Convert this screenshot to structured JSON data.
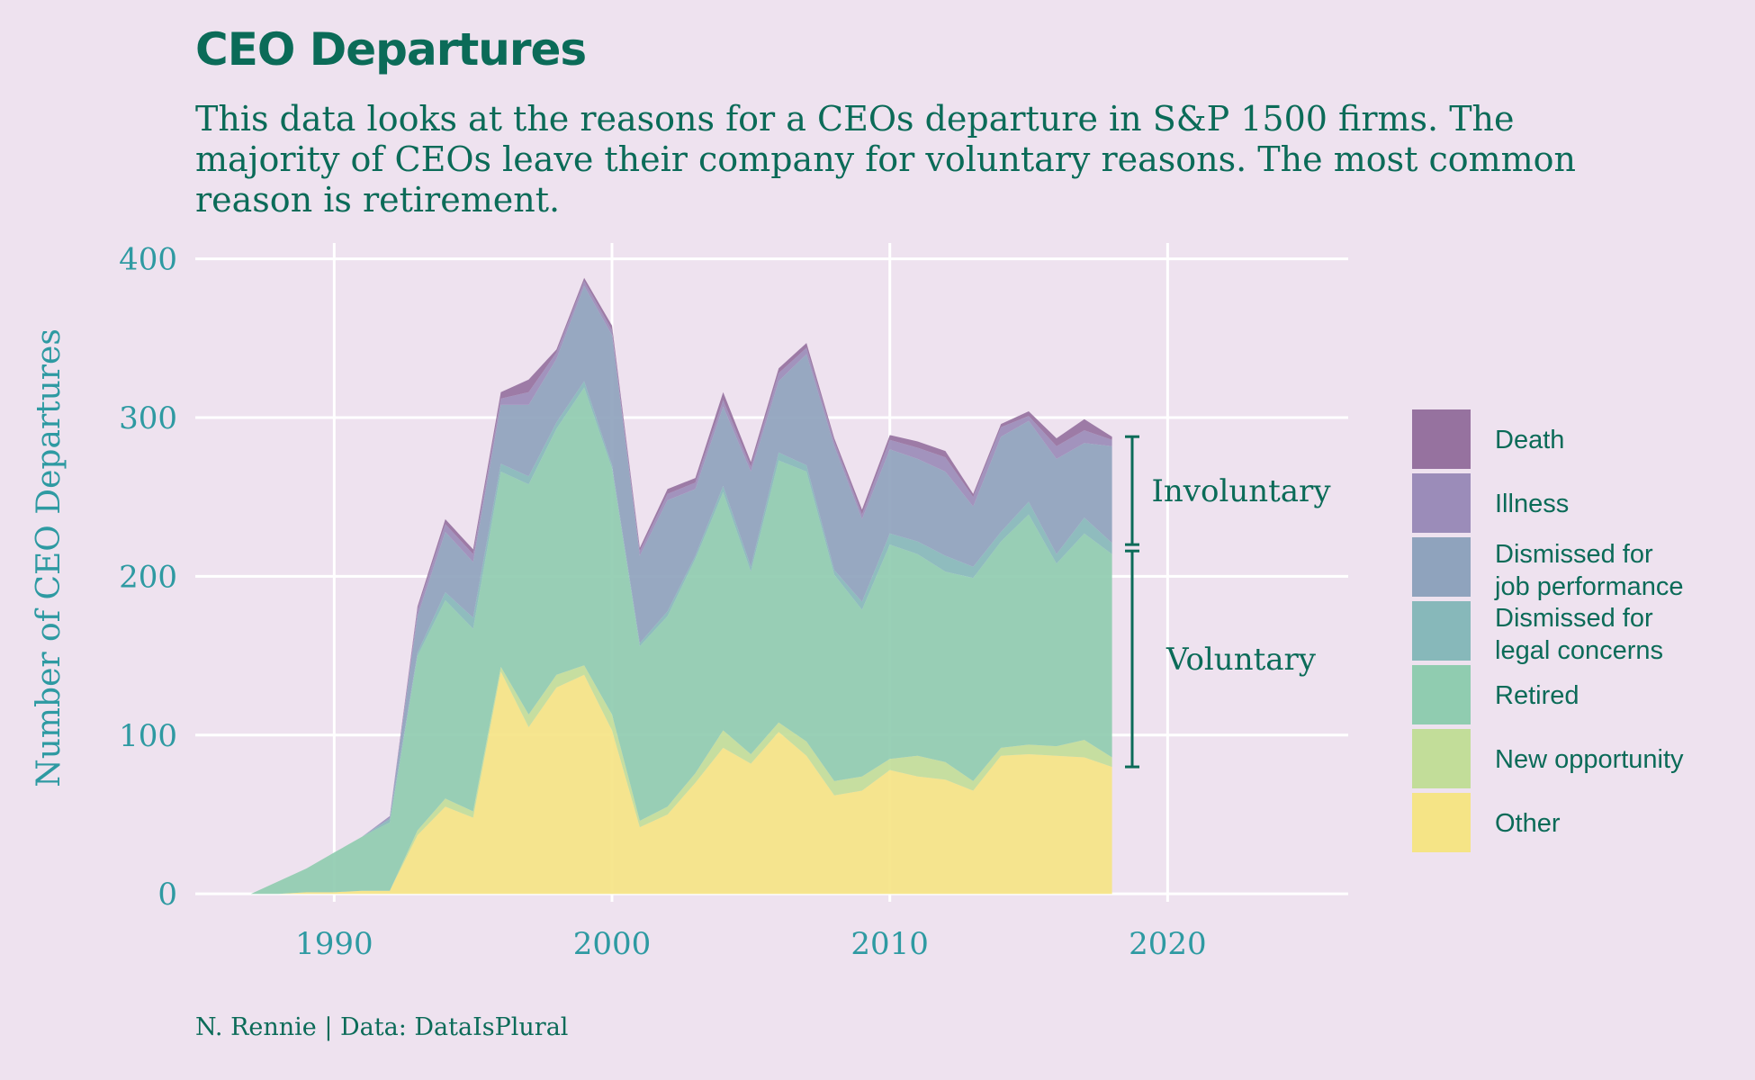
{
  "title": "CEO Departures",
  "subtitle": "This data looks at the reasons for a CEOs departure in S&P 1500 firms. The majority of CEOs leave their company for voluntary reasons. The most common reason is retirement.",
  "caption": "N. Rennie | Data: DataIsPlural",
  "colors": {
    "background": "#EEE2EF",
    "text": "#0B6B58",
    "axis_text": "#2E9AA2",
    "grid": "#FFFFFF",
    "bracket": "#0B6B58"
  },
  "chart_data": {
    "type": "area",
    "stacked": true,
    "ylabel": "Number of CEO Departures",
    "xlabel": "",
    "xlim": [
      1985,
      2026.5
    ],
    "ylim": [
      -5,
      410
    ],
    "x_ticks": [
      1990,
      2000,
      2010,
      2020
    ],
    "y_ticks": [
      0,
      100,
      200,
      300,
      400
    ],
    "grid": true,
    "legend_position": "right",
    "x": [
      1987,
      1988,
      1989,
      1990,
      1991,
      1992,
      1993,
      1994,
      1995,
      1996,
      1997,
      1998,
      1999,
      2000,
      2001,
      2002,
      2003,
      2004,
      2005,
      2006,
      2007,
      2008,
      2009,
      2010,
      2011,
      2012,
      2013,
      2014,
      2015,
      2016,
      2017,
      2018
    ],
    "series": [
      {
        "name": "Other",
        "color": "#F5E486",
        "values": [
          0,
          0,
          1,
          1,
          2,
          2,
          37,
          55,
          48,
          140,
          105,
          130,
          138,
          103,
          42,
          50,
          70,
          92,
          82,
          102,
          87,
          62,
          65,
          78,
          74,
          72,
          65,
          87,
          88,
          87,
          86,
          80
        ]
      },
      {
        "name": "New opportunity",
        "color": "#C2DD99",
        "values": [
          0,
          0,
          0,
          0,
          0,
          0,
          3,
          5,
          4,
          3,
          8,
          8,
          6,
          10,
          4,
          5,
          6,
          11,
          6,
          6,
          9,
          9,
          9,
          7,
          13,
          11,
          6,
          5,
          6,
          6,
          11,
          6
        ]
      },
      {
        "name": "Retired",
        "color": "#90CCB0",
        "values": [
          0,
          8,
          15,
          25,
          34,
          43,
          110,
          125,
          115,
          123,
          145,
          155,
          175,
          155,
          110,
          120,
          135,
          150,
          115,
          165,
          170,
          130,
          105,
          135,
          127,
          120,
          128,
          130,
          145,
          115,
          130,
          128
        ]
      },
      {
        "name": "Dismissed for legal concerns",
        "color": "#87B8BA",
        "values": [
          0,
          0,
          0,
          0,
          0,
          2,
          2,
          5,
          7,
          5,
          5,
          4,
          4,
          2,
          2,
          3,
          2,
          4,
          3,
          5,
          4,
          3,
          5,
          7,
          8,
          10,
          7,
          6,
          8,
          6,
          10,
          7
        ]
      },
      {
        "name": "Dismissed for job performance",
        "color": "#8FA3BD",
        "values": [
          0,
          0,
          0,
          0,
          0,
          1,
          23,
          38,
          35,
          37,
          45,
          40,
          60,
          82,
          55,
          70,
          42,
          50,
          60,
          45,
          70,
          78,
          52,
          53,
          52,
          53,
          38,
          60,
          51,
          60,
          47,
          61
        ]
      },
      {
        "name": "Illness",
        "color": "#9B8CB9",
        "values": [
          0,
          0,
          0,
          0,
          0,
          1,
          4,
          5,
          5,
          4,
          8,
          4,
          3,
          3,
          3,
          4,
          4,
          4,
          3,
          5,
          4,
          3,
          3,
          6,
          7,
          9,
          6,
          6,
          3,
          8,
          8,
          4
        ]
      },
      {
        "name": "Death",
        "color": "#96729F",
        "values": [
          0,
          0,
          0,
          0,
          0,
          0,
          2,
          3,
          3,
          4,
          8,
          2,
          2,
          3,
          2,
          3,
          3,
          5,
          3,
          3,
          3,
          2,
          3,
          3,
          4,
          4,
          2,
          2,
          3,
          5,
          7,
          2
        ]
      }
    ],
    "annotations": [
      {
        "label": "Involuntary",
        "from": 220,
        "to": 288
      },
      {
        "label": "Voluntary",
        "from": 80,
        "to": 216
      }
    ]
  }
}
